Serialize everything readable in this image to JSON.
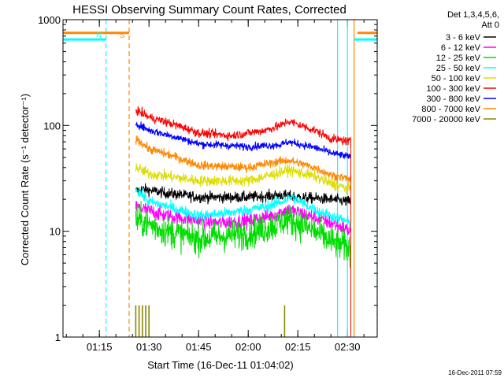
{
  "chart_data": {
    "type": "line",
    "title": "HESSI Observing Summary Count Rates, Corrected",
    "ylabel": "Corrected Count Rate (s⁻¹ detector⁻¹)",
    "xlabel": "Start Time (16-Dec-11 01:04:02)",
    "footer": "16-Dec-2011 07:59",
    "y_scale": "log",
    "ylim": [
      1,
      1000
    ],
    "y_ticks": [
      {
        "value": 1,
        "label": "1"
      },
      {
        "value": 10,
        "label": "10"
      },
      {
        "value": 100,
        "label": "100"
      },
      {
        "value": 1000,
        "label": "1000"
      }
    ],
    "xlim": [
      "01:04",
      "02:39"
    ],
    "x_ticks": [
      "01:15",
      "01:30",
      "01:45",
      "02:00",
      "02:15",
      "02:30"
    ],
    "legend": {
      "placement": "right",
      "header": [
        "Det 1,3,4,5,6,",
        "Att 0"
      ],
      "entries": [
        {
          "label": "3 - 6 keV",
          "color": "#000000"
        },
        {
          "label": "6 - 12 keV",
          "color": "#ff00ff"
        },
        {
          "label": "12 - 25 keV",
          "color": "#00dd00"
        },
        {
          "label": "25 - 50 keV",
          "color": "#00ffff"
        },
        {
          "label": "50 - 100 keV",
          "color": "#dddd00"
        },
        {
          "label": "100 - 300 keV",
          "color": "#ff0000"
        },
        {
          "label": "300 - 800 keV",
          "color": "#0000ff"
        },
        {
          "label": "800 - 7000 keV",
          "color": "#ff8800"
        },
        {
          "label": "7000 - 20000 keV",
          "color": "#888800"
        }
      ]
    },
    "annotations": [
      {
        "text": "N",
        "time": "01:17",
        "color": "#00ffff"
      },
      {
        "text": "S",
        "time": "01:24",
        "color": "#ff8800"
      }
    ],
    "markers": [
      {
        "kind": "night-bar",
        "color": "#00ffff",
        "from": "01:04",
        "to": "01:17",
        "value": 650
      },
      {
        "kind": "night-bar",
        "color": "#00ffff",
        "from": "02:32",
        "to": "02:39",
        "value": 650
      },
      {
        "kind": "saa-bar",
        "color": "#ff8800",
        "from": "01:04",
        "to": "01:24",
        "value": 750
      },
      {
        "kind": "saa-bar",
        "color": "#ff8800",
        "from": "02:33",
        "to": "02:39",
        "value": 750
      }
    ],
    "vlines": [
      {
        "time": "01:17",
        "color": "#00ffff",
        "style": "dashed"
      },
      {
        "time": "01:24",
        "color": "#ff8800",
        "style": "dashed"
      },
      {
        "time": "02:27",
        "color": "#00ffff",
        "style": "solid"
      },
      {
        "time": "02:30",
        "color": "#00ffff",
        "style": "solid"
      },
      {
        "time": "02:32",
        "color": "#ff8800",
        "style": "solid"
      },
      {
        "time": "02:39",
        "color": "#00ffff",
        "style": "dashed"
      }
    ],
    "data_window": {
      "start": "01:26",
      "end": "02:31"
    },
    "series": [
      {
        "name": "3 - 6 keV",
        "color": "#000000",
        "noise": 0.05,
        "x": [
          "01:26",
          "01:28",
          "01:35",
          "01:45",
          "02:00",
          "02:10",
          "02:15",
          "02:25",
          "02:31"
        ],
        "y": [
          24,
          25,
          23,
          21,
          21,
          22,
          21,
          20,
          19
        ]
      },
      {
        "name": "6 - 12 keV",
        "color": "#ff00ff",
        "noise": 0.07,
        "x": [
          "01:26",
          "01:35",
          "01:50",
          "02:00",
          "02:07",
          "02:12",
          "02:20",
          "02:25",
          "02:31"
        ],
        "y": [
          17,
          14,
          12,
          12.5,
          14,
          16,
          13.5,
          12,
          10
        ]
      },
      {
        "name": "12 - 25 keV",
        "color": "#00dd00",
        "noise": 0.14,
        "x": [
          "01:26",
          "01:35",
          "01:45",
          "02:00",
          "02:07",
          "02:12",
          "02:20",
          "02:25",
          "02:31"
        ],
        "y": [
          13,
          10,
          8.5,
          9.5,
          11,
          13,
          10,
          8,
          6.8
        ]
      },
      {
        "name": "25 - 50 keV",
        "color": "#00ffff",
        "noise": 0.05,
        "x": [
          "01:26",
          "01:30",
          "01:45",
          "01:55",
          "02:05",
          "02:10",
          "02:13",
          "02:20",
          "02:25",
          "02:31"
        ],
        "y": [
          25,
          19,
          14,
          15,
          17,
          19,
          21,
          16,
          14,
          12
        ]
      },
      {
        "name": "50 - 100 keV",
        "color": "#dddd00",
        "noise": 0.05,
        "x": [
          "01:26",
          "01:30",
          "01:45",
          "02:00",
          "02:07",
          "02:12",
          "02:20",
          "02:25",
          "02:31"
        ],
        "y": [
          40,
          35,
          30,
          30,
          34,
          38,
          33,
          28,
          25
        ]
      },
      {
        "name": "100 - 300 keV",
        "color": "#ff0000",
        "noise": 0.04,
        "x": [
          "01:26",
          "01:30",
          "01:45",
          "01:55",
          "02:05",
          "02:10",
          "02:12",
          "02:20",
          "02:25",
          "02:31"
        ],
        "y": [
          140,
          120,
          85,
          80,
          90,
          100,
          110,
          90,
          75,
          70
        ]
      },
      {
        "name": "300 - 800 keV",
        "color": "#0000ff",
        "noise": 0.035,
        "x": [
          "01:26",
          "01:30",
          "01:45",
          "02:00",
          "02:10",
          "02:12",
          "02:20",
          "02:25",
          "02:31"
        ],
        "y": [
          105,
          90,
          67,
          63,
          66,
          70,
          62,
          55,
          50
        ]
      },
      {
        "name": "800 - 7000 keV",
        "color": "#ff8800",
        "noise": 0.04,
        "x": [
          "01:26",
          "01:30",
          "01:45",
          "02:00",
          "02:08",
          "02:12",
          "02:20",
          "02:25",
          "02:31"
        ],
        "y": [
          75,
          60,
          42,
          40,
          45,
          47,
          40,
          34,
          31
        ]
      },
      {
        "name": "7000 - 20000 keV",
        "color": "#888800",
        "style": "spikes",
        "x": [
          "01:26",
          "01:27",
          "01:28",
          "01:29",
          "01:30",
          "02:11"
        ],
        "y": [
          2,
          2,
          2,
          2,
          2,
          2
        ]
      }
    ]
  }
}
